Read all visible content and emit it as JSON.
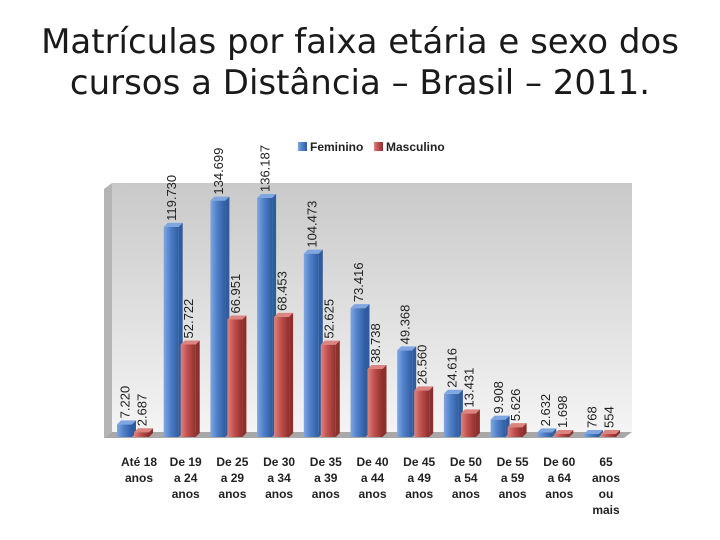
{
  "title_lines": [
    "Matrículas por faixa etária e sexo dos",
    "cursos a Distância – Brasil – 2011."
  ],
  "colors": {
    "feminino": "#4f7fc9",
    "feminino_dark": "#2f5c9e",
    "feminino_top": "#7fa6e0",
    "masculino": "#c0504d",
    "masculino_dark": "#8e2f2c",
    "masculino_top": "#dc8480"
  },
  "chart_data": {
    "type": "bar",
    "title": "",
    "xlabel": "",
    "ylabel": "",
    "legend": "top",
    "ylim": [
      0,
      140000
    ],
    "categories": [
      [
        "Até 18",
        "anos"
      ],
      [
        "De 19",
        "a 24",
        "anos"
      ],
      [
        "De 25",
        "a 29",
        "anos"
      ],
      [
        "De 30",
        "a 34",
        "anos"
      ],
      [
        "De 35",
        "a 39",
        "anos"
      ],
      [
        "De 40",
        "a 44",
        "anos"
      ],
      [
        "De 45",
        "a 49",
        "anos"
      ],
      [
        "De 50",
        "a 54",
        "anos"
      ],
      [
        "De 55",
        "a 59",
        "anos"
      ],
      [
        "De 60",
        "a 64",
        "anos"
      ],
      [
        "65",
        "anos",
        "ou",
        "mais"
      ]
    ],
    "series": [
      {
        "name": "Feminino",
        "values": [
          7220,
          119730,
          134699,
          136187,
          104473,
          73416,
          49368,
          24616,
          9908,
          2632,
          768
        ],
        "labels": [
          "7.220",
          "119.730",
          "134.699",
          "136.187",
          "104.473",
          "73.416",
          "49.368",
          "24.616",
          "9.908",
          "2.632",
          "768"
        ]
      },
      {
        "name": "Masculino",
        "values": [
          2687,
          52722,
          66951,
          68453,
          52625,
          38738,
          26560,
          13431,
          5626,
          1698,
          554
        ],
        "labels": [
          "2.687",
          "52.722",
          "66.951",
          "68.453",
          "52.625",
          "38.738",
          "26.560",
          "13.431",
          "5.626",
          "1.698",
          "554"
        ]
      }
    ]
  }
}
